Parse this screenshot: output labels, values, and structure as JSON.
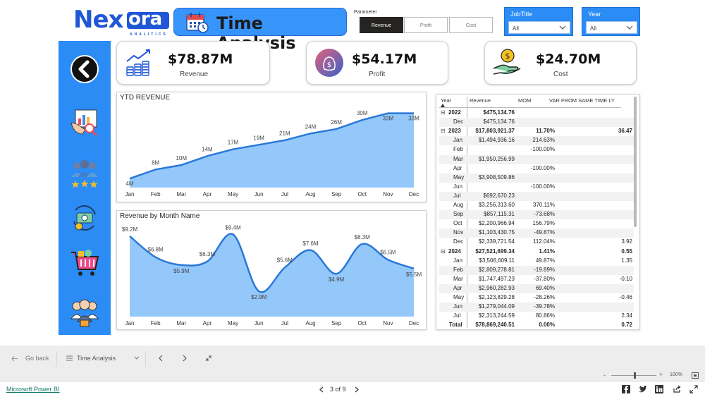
{
  "logo": {
    "brand_main": "Nex",
    "brand_box": "ora",
    "brand_sub": "ANALITICS"
  },
  "header": {
    "title": "Time Analysis"
  },
  "parameter": {
    "label": "Parameter",
    "options": [
      "Revenue",
      "Profit",
      "Cost"
    ],
    "selected": "Revenue"
  },
  "slicers": {
    "jobtitle": {
      "title": "JobTitle",
      "value": "All"
    },
    "year": {
      "title": "Year",
      "value": "All"
    }
  },
  "sidebar": {
    "icons": [
      "back-arrow-icon",
      "analytics-report-icon",
      "team-rating-icon",
      "money-cycle-icon",
      "shopping-cart-icon",
      "employees-group-icon"
    ]
  },
  "kpis": [
    {
      "value": "$78.87M",
      "label": "Revenue",
      "icon": "coins-growth-icon"
    },
    {
      "value": "$54.17M",
      "label": "Profit",
      "icon": "money-bag-icon"
    },
    {
      "value": "$24.70M",
      "label": "Cost",
      "icon": "hand-coin-icon"
    }
  ],
  "colors": {
    "accent": "#2b8cf6",
    "area_fill": "#8ec5fb",
    "line": "#2a78d8",
    "dark": "#252423"
  },
  "chart_data": [
    {
      "type": "area",
      "title": "YTD REVENUE",
      "categories": [
        "Jan",
        "Feb",
        "Mar",
        "Apr",
        "May",
        "Jun",
        "Jul",
        "Aug",
        "Sep",
        "Oct",
        "Nov",
        "Dec"
      ],
      "values": [
        4,
        8,
        10,
        14,
        17,
        19,
        21,
        24,
        26,
        30,
        33,
        33
      ],
      "labels": [
        "4M",
        "8M",
        "10M",
        "14M",
        "17M",
        "19M",
        "21M",
        "24M",
        "26M",
        "30M",
        "33M",
        "33M"
      ],
      "ylim": [
        0,
        36
      ],
      "grid": false
    },
    {
      "type": "area",
      "title": "Revenue by Month Name",
      "categories": [
        "Jan",
        "Feb",
        "Mar",
        "Apr",
        "May",
        "Jun",
        "Jul",
        "Aug",
        "Sep",
        "Oct",
        "Nov",
        "Dec"
      ],
      "values": [
        9.2,
        6.8,
        5.9,
        6.3,
        9.4,
        2.9,
        5.6,
        7.6,
        4.9,
        8.3,
        6.5,
        5.5
      ],
      "labels": [
        "$9.2M",
        "$6.8M",
        "$5.9M",
        "$6.3M",
        "$9.4M",
        "$2.9M",
        "$5.6M",
        "$7.6M",
        "$4.9M",
        "$8.3M",
        "$6.5M",
        "$5.5M"
      ],
      "ylim": [
        0,
        10
      ],
      "grid": false
    }
  ],
  "matrix": {
    "headers": [
      "Year",
      "Revenue",
      "MOM",
      "VAR FROM SAME TIME LY"
    ],
    "rows": [
      {
        "kind": "yr",
        "exp": "⊟",
        "label": "2022",
        "revenue": "$475,134.76",
        "mom": "",
        "var": ""
      },
      {
        "kind": "m",
        "label": "Dec",
        "revenue": "$475,134.76",
        "mom": "",
        "var": ""
      },
      {
        "kind": "yr",
        "exp": "⊟",
        "label": "2023",
        "revenue": "$17,803,921.37",
        "mom": "11.70%",
        "var": "36.47"
      },
      {
        "kind": "m",
        "label": "Jan",
        "revenue": "$1,494,936.16",
        "mom": "214.63%",
        "var": ""
      },
      {
        "kind": "m",
        "label": "Feb",
        "revenue": "",
        "mom": "-100.00%",
        "var": ""
      },
      {
        "kind": "m",
        "label": "Mar",
        "revenue": "$1,950,256.99",
        "mom": "",
        "var": ""
      },
      {
        "kind": "m",
        "label": "Apr",
        "revenue": "",
        "mom": "-100.00%",
        "var": ""
      },
      {
        "kind": "m",
        "label": "May",
        "revenue": "$3,908,509.86",
        "mom": "",
        "var": ""
      },
      {
        "kind": "m",
        "label": "Jun",
        "revenue": "",
        "mom": "-100.00%",
        "var": ""
      },
      {
        "kind": "m",
        "label": "Jul",
        "revenue": "$692,670.23",
        "mom": "",
        "var": ""
      },
      {
        "kind": "m",
        "label": "Aug",
        "revenue": "$3,256,313.60",
        "mom": "370.11%",
        "var": ""
      },
      {
        "kind": "m",
        "label": "Sep",
        "revenue": "$857,115.31",
        "mom": "-73.68%",
        "var": ""
      },
      {
        "kind": "m",
        "label": "Oct",
        "revenue": "$2,200,966.94",
        "mom": "156.79%",
        "var": ""
      },
      {
        "kind": "m",
        "label": "Nov",
        "revenue": "$1,103,430.75",
        "mom": "-49.87%",
        "var": ""
      },
      {
        "kind": "m",
        "label": "Dec",
        "revenue": "$2,339,721.54",
        "mom": "112.04%",
        "var": "3.92"
      },
      {
        "kind": "yr",
        "exp": "⊟",
        "label": "2024",
        "revenue": "$27,521,699.34",
        "mom": "1.41%",
        "var": "0.55"
      },
      {
        "kind": "m",
        "label": "Jan",
        "revenue": "$3,506,609.11",
        "mom": "49.87%",
        "var": "1.35"
      },
      {
        "kind": "m",
        "label": "Feb",
        "revenue": "$2,809,278.81",
        "mom": "-19.89%",
        "var": ""
      },
      {
        "kind": "m",
        "label": "Mar",
        "revenue": "$1,747,497.23",
        "mom": "-37.80%",
        "var": "-0.10"
      },
      {
        "kind": "m",
        "label": "Apr",
        "revenue": "$2,960,282.93",
        "mom": "69.40%",
        "var": ""
      },
      {
        "kind": "m",
        "label": "May",
        "revenue": "$2,123,829.28",
        "mom": "-28.26%",
        "var": "-0.46"
      },
      {
        "kind": "m",
        "label": "Jun",
        "revenue": "$1,279,044.09",
        "mom": "-39.78%",
        "var": ""
      },
      {
        "kind": "m",
        "label": "Jul",
        "revenue": "$2,313,244.59",
        "mom": "80.86%",
        "var": "2.34"
      },
      {
        "kind": "tot",
        "label": "Total",
        "revenue": "$78,869,240.51",
        "mom": "0.00%",
        "var": "0.72"
      }
    ]
  },
  "navbar": {
    "go_back": "Go back",
    "page_name": "Time Analysis"
  },
  "zoom": {
    "level": "100%",
    "minus": "-",
    "plus": "+"
  },
  "footer": {
    "brand": "Microsoft Power BI",
    "pager": "3 of 9"
  }
}
